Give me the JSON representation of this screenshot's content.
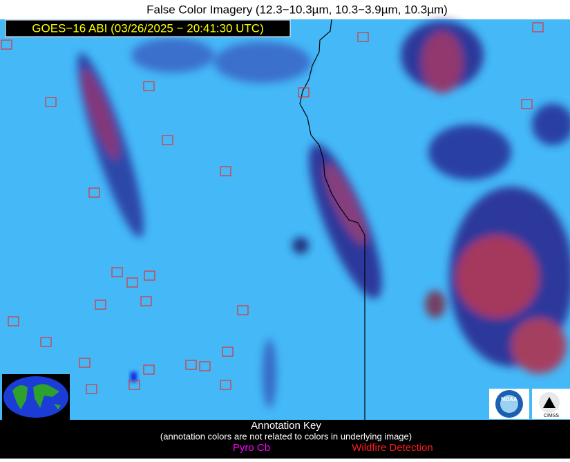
{
  "header": {
    "title": "False Color Imagery (12.3−10.3µm, 10.3−3.9µm, 10.3µm)",
    "satellite_label": "GOES−16 ABI (03/26/2025 − 20:41:30 UTC)"
  },
  "logos": {
    "noaa": "NOAA",
    "cimss": "CIMSS"
  },
  "key": {
    "title": "Annotation Key",
    "note": "(annotation colors are not related to colors in underlying image)",
    "pyro_cb": "Pyro Cb",
    "wildfire": "Wildfire Detection"
  }
}
